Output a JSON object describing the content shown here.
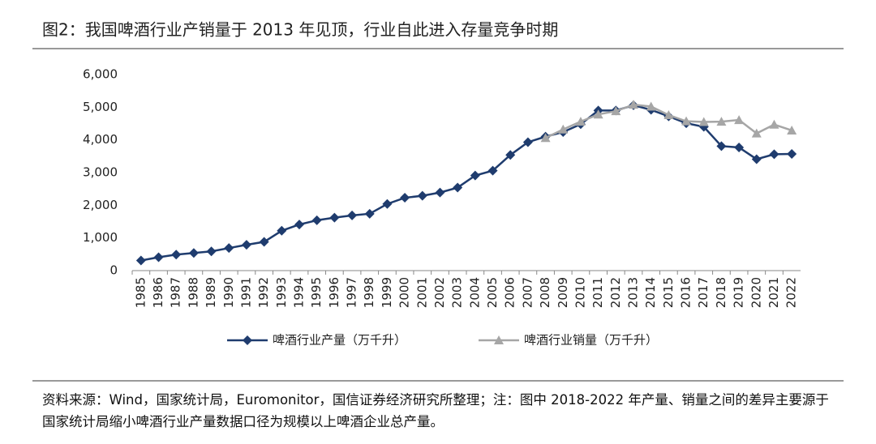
{
  "chart_data": {
    "type": "line",
    "title": "图2：我国啤酒行业产销量于 2013 年见顶，行业自此进入存量竞争时期",
    "source": "资料来源：Wind，国家统计局，Euromonitor，国信证券经济研究所整理；注：图中 2018-2022 年产量、销量之间的差异主要源于国家统计局缩小啤酒行业产量数据口径为规模以上啤酒企业总产量。",
    "categories": [
      "1985",
      "1986",
      "1987",
      "1988",
      "1989",
      "1990",
      "1991",
      "1992",
      "1993",
      "1994",
      "1995",
      "1996",
      "1997",
      "1998",
      "1999",
      "2000",
      "2001",
      "2002",
      "2003",
      "2004",
      "2005",
      "2006",
      "2007",
      "2008",
      "2009",
      "2010",
      "2011",
      "2012",
      "2013",
      "2014",
      "2015",
      "2016",
      "2017",
      "2018",
      "2019",
      "2020",
      "2021",
      "2022"
    ],
    "series": [
      {
        "name": "啤酒行业产量（万千升）",
        "color": "#1f3c6e",
        "marker": "diamond",
        "values": [
          310,
          410,
          490,
          540,
          590,
          690,
          790,
          880,
          1220,
          1410,
          1540,
          1620,
          1690,
          1740,
          2040,
          2230,
          2290,
          2390,
          2540,
          2910,
          3060,
          3540,
          3930,
          4100,
          4240,
          4480,
          4900,
          4900,
          5060,
          4920,
          4720,
          4510,
          4400,
          3810,
          3770,
          3410,
          3560,
          3570
        ]
      },
      {
        "name": "啤酒行业销量（万千升）",
        "color": "#a6a6a6",
        "marker": "triangle",
        "values": [
          null,
          null,
          null,
          null,
          null,
          null,
          null,
          null,
          null,
          null,
          null,
          null,
          null,
          null,
          null,
          null,
          null,
          null,
          null,
          null,
          null,
          null,
          null,
          4060,
          4320,
          4560,
          4780,
          4880,
          5080,
          5020,
          4760,
          4570,
          4550,
          4560,
          4610,
          4200,
          4470,
          4290
        ]
      }
    ],
    "ylim": [
      0,
      6000
    ],
    "yticks": [
      0,
      {
        "value": 1000,
        "label": "1,000"
      },
      {
        "value": 2000,
        "label": "2,000"
      },
      {
        "value": 3000,
        "label": "3,000"
      },
      {
        "value": 4000,
        "label": "4,000"
      },
      {
        "value": 5000,
        "label": "5,000"
      },
      {
        "value": 6000,
        "label": "6,000"
      }
    ],
    "grid": false,
    "legend": "bottom"
  }
}
